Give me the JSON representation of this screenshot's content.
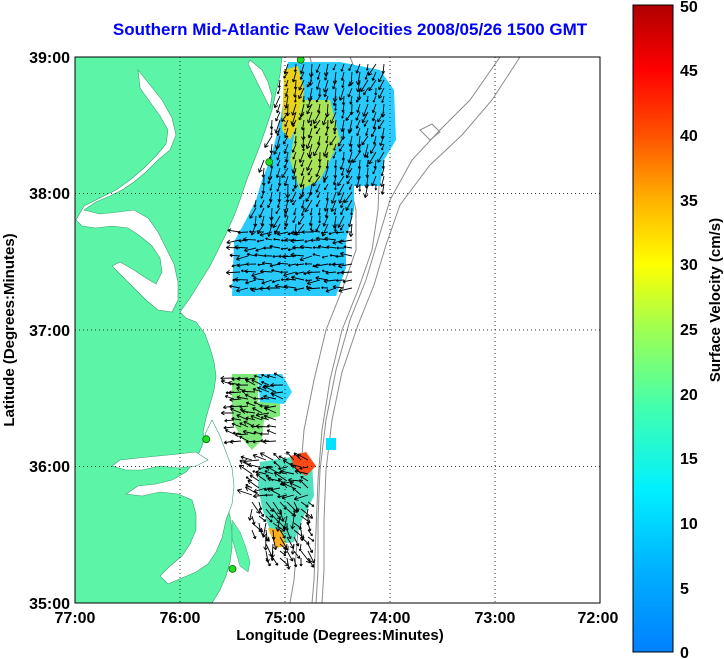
{
  "title": "Southern Mid-Atlantic Raw Velocities 2008/05/26 1500 GMT",
  "axes": {
    "xlabel": "Longitude (Degrees:Minutes)",
    "ylabel": "Latitude (Degrees:Minutes)",
    "x_ticks": [
      "77:00",
      "76:00",
      "75:00",
      "74:00",
      "73:00",
      "72:00"
    ],
    "y_ticks": [
      "35:00",
      "36:00",
      "37:00",
      "38:00",
      "39:00"
    ],
    "x_range_deg_west": [
      77,
      72
    ],
    "y_range_deg_north": [
      35,
      39
    ],
    "grid": "dotted"
  },
  "colorbar": {
    "label": "Surface Velocity (cm/s)",
    "ticks": [
      "0",
      "5",
      "10",
      "15",
      "20",
      "25",
      "30",
      "35",
      "40",
      "45",
      "50"
    ],
    "range": [
      0,
      50
    ],
    "colormap": "jet"
  },
  "colors": {
    "land": "#5cf5a8",
    "title": "#0000ff",
    "bathymetry": "#8c8c8c",
    "vectors": "#000000",
    "station": "#22dd22"
  },
  "regions": [
    {
      "name": "northern-field",
      "speed_cm_s": 12
    },
    {
      "name": "northern-coastal-jet",
      "speed_cm_s": 28
    },
    {
      "name": "central-field",
      "speed_cm_s": 20
    },
    {
      "name": "southern-field",
      "speed_cm_s": 16
    },
    {
      "name": "southern-jet",
      "speed_cm_s": 40
    }
  ],
  "stations": [
    {
      "name": "station-north",
      "lon": -74.85,
      "lat": 38.98
    },
    {
      "name": "station-mid-north",
      "lon": -75.15,
      "lat": 38.23
    },
    {
      "name": "station-mid",
      "lon": -75.75,
      "lat": 36.2
    },
    {
      "name": "station-south",
      "lon": -75.5,
      "lat": 35.25
    }
  ]
}
